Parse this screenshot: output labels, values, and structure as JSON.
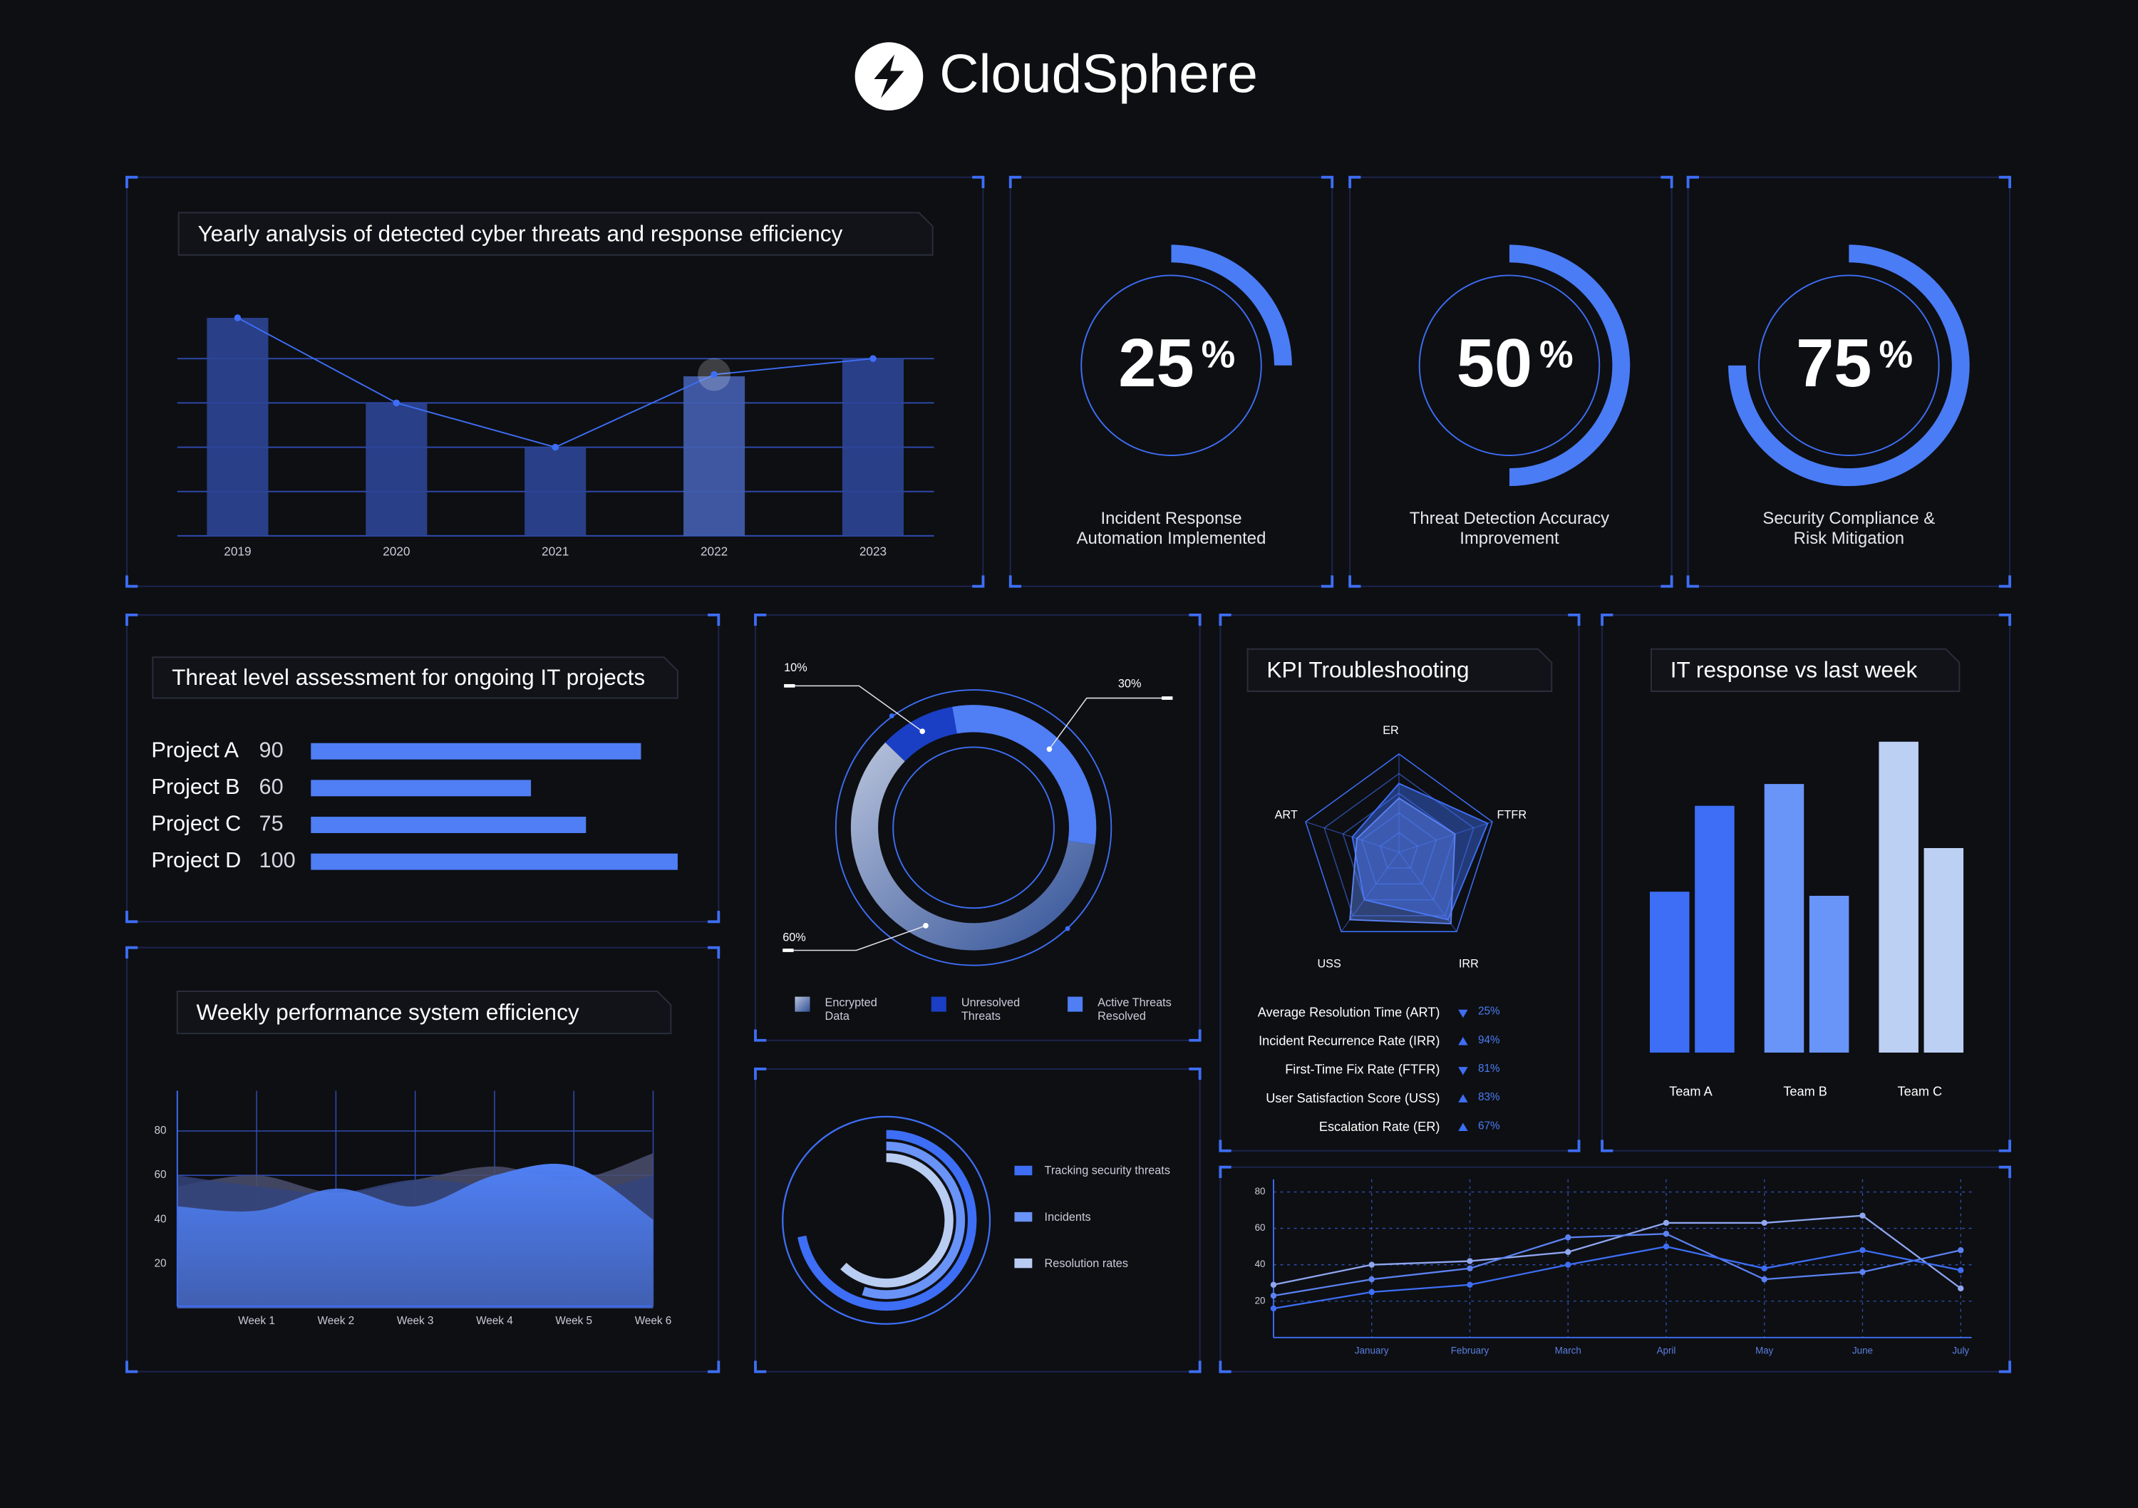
{
  "header": {
    "title": "CloudSphere"
  },
  "chart_data": [
    {
      "type": "bar_line",
      "title": "Yearly analysis of detected cyber threats and response efficiency",
      "categories": [
        "2019",
        "2020",
        "2021",
        "2022",
        "2023"
      ],
      "bar_values": [
        123,
        75,
        50,
        90,
        100
      ],
      "line_values": [
        123,
        75,
        50,
        91,
        100
      ],
      "ylim": [
        0,
        125
      ],
      "yticks": [
        0,
        25,
        50,
        75,
        100
      ],
      "grid": true,
      "bar_color": "#2c4596",
      "highlight_color": "#445fb0",
      "line_color": "#3d6ef5",
      "highlight_index": 3
    },
    {
      "type": "gauge",
      "value": 25,
      "unit": "%",
      "label": [
        "Incident Response",
        "Automation Implemented"
      ],
      "color": "#4a7cf6"
    },
    {
      "type": "gauge",
      "value": 50,
      "unit": "%",
      "label": [
        "Threat Detection Accuracy",
        "Improvement"
      ],
      "color": "#4a7cf6"
    },
    {
      "type": "gauge",
      "value": 75,
      "unit": "%",
      "label": [
        "Security Compliance &",
        "Risk Mitigation"
      ],
      "color": "#4a7cf6"
    },
    {
      "type": "hbar",
      "title": "Threat level assessment for ongoing IT projects",
      "categories": [
        "Project A",
        "Project B",
        "Project C",
        "Project D"
      ],
      "values": [
        90,
        60,
        75,
        100
      ],
      "xlim": [
        0,
        100
      ],
      "color": "#4f7ef5"
    },
    {
      "type": "donut",
      "categories": [
        "Encrypted Data",
        "Unresolved Threats",
        "Active Threats Resolved"
      ],
      "values": [
        60,
        10,
        30
      ],
      "value_labels": [
        "60%",
        "10%",
        "30%"
      ],
      "colors": [
        "#8fa3cf",
        "#1a3fc4",
        "#4f7ef5"
      ]
    },
    {
      "type": "radial_bar",
      "categories": [
        "Tracking security threats",
        "Incidents",
        "Resolution rates"
      ],
      "values": [
        72,
        55,
        62
      ],
      "colors": [
        "#3d6ef5",
        "#6a93f7",
        "#b9cdf2"
      ]
    },
    {
      "type": "radar",
      "title": "KPI Troubleshooting",
      "axes": [
        "ER",
        "FTFR",
        "IRR",
        "USS",
        "ART"
      ],
      "rlim": [
        0,
        100
      ],
      "rticks": [
        20,
        40,
        60,
        80,
        100
      ],
      "series": [
        {
          "color": "#3d6ef5",
          "values": [
            70,
            95,
            85,
            60,
            50
          ]
        },
        {
          "color": "#5b82f2",
          "values": [
            55,
            60,
            90,
            85,
            45
          ]
        }
      ],
      "kpis": {
        "labels": [
          "Average Resolution Time (ART)",
          "Incident Recurrence Rate (IRR)",
          "First-Time Fix Rate (FTFR)",
          "User Satisfaction Score (USS)",
          "Escalation Rate (ER)"
        ],
        "directions": [
          "down",
          "up",
          "down",
          "up",
          "up"
        ],
        "values": [
          25,
          94,
          81,
          83,
          67
        ],
        "value_labels": [
          "25%",
          "94%",
          "81%",
          "83%",
          "67%"
        ]
      }
    },
    {
      "type": "grouped_bar",
      "title": "IT response vs last week",
      "categories": [
        "Team A",
        "Team B",
        "Team C"
      ],
      "series": [
        {
          "values": [
            118,
            197,
            228
          ]
        },
        {
          "values": [
            181,
            115,
            150
          ]
        }
      ],
      "colors": [
        "#3d6ef5",
        "#6a95f8",
        "#bcd0f3"
      ],
      "ylim": [
        0,
        240
      ]
    },
    {
      "type": "area",
      "title": "Weekly performance system efficiency",
      "categories": [
        null,
        "Week 1",
        "Week 2",
        "Week 3",
        "Week 4",
        "Week 5",
        "Week 6"
      ],
      "ylim": [
        0,
        97
      ],
      "yticks": [
        20,
        40,
        60,
        80
      ],
      "grid": true,
      "series": [
        {
          "color": "#4a4f6e",
          "values": [
            55,
            60,
            52,
            58,
            64,
            58,
            70
          ]
        },
        {
          "color": "#34447c",
          "values": [
            60,
            55,
            52,
            58,
            55,
            52,
            60
          ]
        },
        {
          "color": "#4f80f5",
          "values": [
            46,
            44,
            54,
            46,
            60,
            64,
            40
          ]
        }
      ]
    },
    {
      "type": "line",
      "categories": [
        null,
        "January",
        "February",
        "March",
        "April",
        "May",
        "June",
        "July"
      ],
      "ylim": [
        0,
        87
      ],
      "yticks": [
        20,
        40,
        60,
        80
      ],
      "grid": true,
      "series": [
        {
          "color": "#8fa6f0",
          "values": [
            29,
            40,
            42,
            47,
            63,
            63,
            67,
            27
          ]
        },
        {
          "color": "#5b82f2",
          "values": [
            23,
            32,
            38,
            55,
            57,
            32,
            36,
            48
          ]
        },
        {
          "color": "#3d6ef5",
          "values": [
            16,
            25,
            29,
            40,
            50,
            38,
            48,
            37
          ]
        }
      ]
    }
  ]
}
